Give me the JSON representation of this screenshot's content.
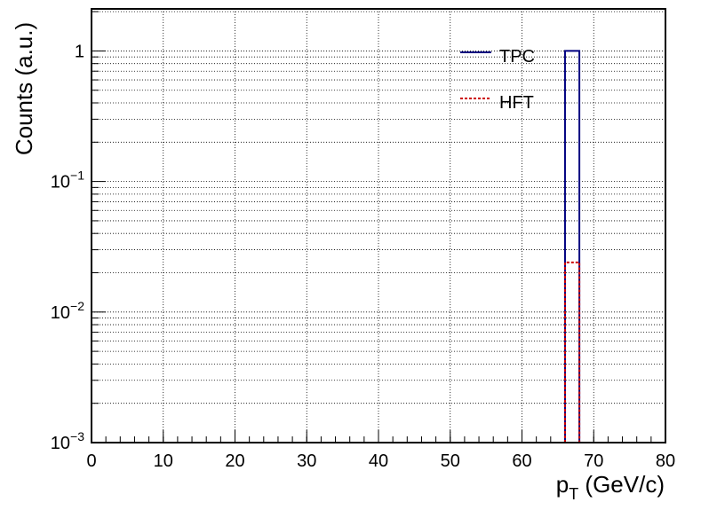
{
  "chart_data": {
    "type": "histogram",
    "xlabel": "pT (GeV/c)",
    "ylabel": "Counts (a.u.)",
    "bins": [
      66,
      68
    ],
    "series": [
      {
        "name": "TPC",
        "color": "#000080",
        "dashed": false,
        "values": [
          1
        ]
      },
      {
        "name": "HFT",
        "color": "#cc0000",
        "dashed": true,
        "values": [
          0.024
        ]
      }
    ],
    "xlim": [
      0,
      80
    ],
    "xticks": [
      0,
      10,
      20,
      30,
      40,
      50,
      60,
      70,
      80
    ],
    "ylim": [
      0.001,
      2.1
    ],
    "log_y": true,
    "yticks": [
      {
        "value": 0.001,
        "label": "10−3"
      },
      {
        "value": 0.01,
        "label": "10−2"
      },
      {
        "value": 0.1,
        "label": "10−1"
      },
      1
    ],
    "grid": true,
    "legend": "top-right"
  }
}
